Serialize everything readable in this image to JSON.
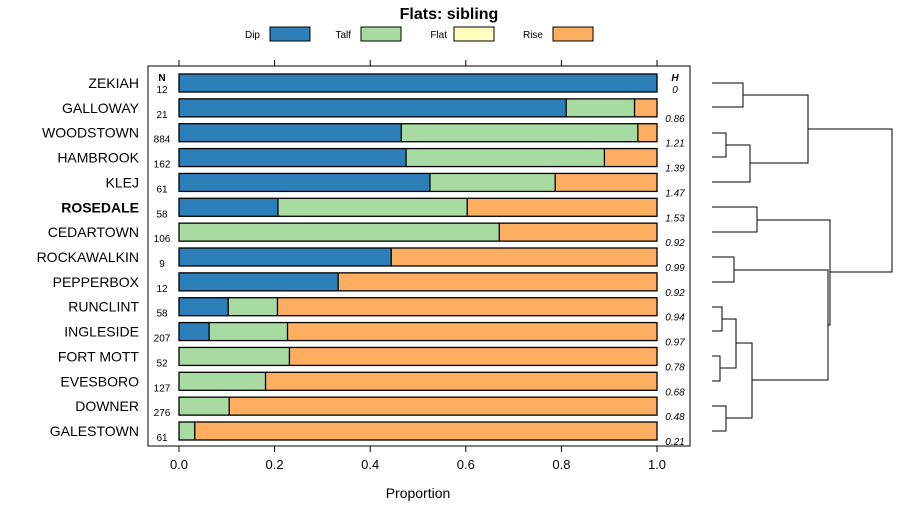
{
  "chart_data": {
    "type": "bar",
    "stacked": true,
    "orientation": "horizontal",
    "title": "Flats: sibling",
    "xlabel": "Proportion",
    "ylabel": "",
    "xlim": [
      0,
      1
    ],
    "xticks": [
      "0.0",
      "0.2",
      "0.4",
      "0.6",
      "0.8",
      "1.0"
    ],
    "n_header": "N",
    "h_header": "H",
    "highlight": "ROSEDALE",
    "legend": [
      {
        "name": "Dip",
        "color": "#2c7fb8"
      },
      {
        "name": "Talf",
        "color": "#a8dba1"
      },
      {
        "name": "Flat",
        "color": "#ffffbf"
      },
      {
        "name": "Rise",
        "color": "#fdae61"
      }
    ],
    "rows": [
      {
        "name": "ZEKIAH",
        "n": "12",
        "h": "0",
        "dip": 1.0,
        "talf": 0.0,
        "flat": 0.0,
        "rise": 0.0
      },
      {
        "name": "GALLOWAY",
        "n": "21",
        "h": "0.86",
        "dip": 0.81,
        "talf": 0.143,
        "flat": 0.0,
        "rise": 0.047
      },
      {
        "name": "WOODSTOWN",
        "n": "884",
        "h": "1.21",
        "dip": 0.465,
        "talf": 0.495,
        "flat": 0.0,
        "rise": 0.04
      },
      {
        "name": "HAMBROOK",
        "n": "162",
        "h": "1.39",
        "dip": 0.475,
        "talf": 0.415,
        "flat": 0.0,
        "rise": 0.11
      },
      {
        "name": "KLEJ",
        "n": "61",
        "h": "1.47",
        "dip": 0.525,
        "talf": 0.262,
        "flat": 0.0,
        "rise": 0.213
      },
      {
        "name": "ROSEDALE",
        "n": "58",
        "h": "1.53",
        "dip": 0.207,
        "talf": 0.396,
        "flat": 0.0,
        "rise": 0.397
      },
      {
        "name": "CEDARTOWN",
        "n": "106",
        "h": "0.92",
        "dip": 0.0,
        "talf": 0.67,
        "flat": 0.0,
        "rise": 0.33
      },
      {
        "name": "ROCKAWALKIN",
        "n": "9",
        "h": "0.99",
        "dip": 0.444,
        "talf": 0.0,
        "flat": 0.0,
        "rise": 0.556
      },
      {
        "name": "PEPPERBOX",
        "n": "12",
        "h": "0.92",
        "dip": 0.333,
        "talf": 0.0,
        "flat": 0.0,
        "rise": 0.667
      },
      {
        "name": "RUNCLINT",
        "n": "58",
        "h": "0.94",
        "dip": 0.103,
        "talf": 0.103,
        "flat": 0.0,
        "rise": 0.794
      },
      {
        "name": "INGLESIDE",
        "n": "207",
        "h": "0.97",
        "dip": 0.063,
        "talf": 0.164,
        "flat": 0.0,
        "rise": 0.773
      },
      {
        "name": "FORT MOTT",
        "n": "52",
        "h": "0.78",
        "dip": 0.0,
        "talf": 0.231,
        "flat": 0.0,
        "rise": 0.769
      },
      {
        "name": "EVESBORO",
        "n": "127",
        "h": "0.68",
        "dip": 0.0,
        "talf": 0.181,
        "flat": 0.0,
        "rise": 0.819
      },
      {
        "name": "DOWNER",
        "n": "276",
        "h": "0.48",
        "dip": 0.0,
        "talf": 0.105,
        "flat": 0.0,
        "rise": 0.895
      },
      {
        "name": "GALESTOWN",
        "n": "61",
        "h": "0.21",
        "dip": 0.0,
        "talf": 0.033,
        "flat": 0.0,
        "rise": 0.967
      }
    ]
  }
}
